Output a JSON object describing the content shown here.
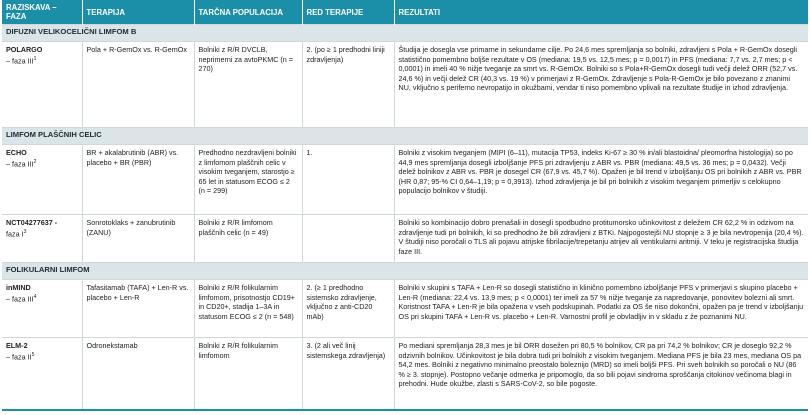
{
  "headers": [
    "RAZISKAVA – FAZA",
    "TERAPIJA",
    "TARČNA POPULACIJA",
    "RED TERAPIJE",
    "REZULTATI"
  ],
  "sections": [
    {
      "title": "DIFUZNI VELIKOCELIČNI LIMFOM B",
      "rows": [
        {
          "study": "POLARGO",
          "phase": "– faza III",
          "sup": "1",
          "therapy": "Pola + R-GemOx vs. R-GemOx",
          "population": "Bolniki z R/R DVCLB, neprimerni za avtoPKMC (n = 270)",
          "line": "2. (po ≥ 1 predhodni liniji zdravljenja)",
          "result": "Študija je dosegla vse primarne in sekundarne cilje. Po 24,6 mes spremljanja so bolniki, zdravljeni s Pola + R-GemOx dosegli statistično pomembno boljše rezultate v OS (mediana: 19,5 vs. 12,5 mes; p = 0,0017) in PFS (mediana: 7,7 vs. 2,7 mes; p < 0,0001) in imeli 40 % nižje tveganje za smrt vs. R-GemOx. Bolniki so s Pola+R-GemOx dosegli tudi večji delež ORR (52,7 vs. 24,6 %) in večji delež CR (40,3 vs. 19 %) v primerjavi z R-GemOx. Zdravljenje s Pola-R-GemOx je bilo povezano z znanimi NU, vključno s periferno nevropatijo in okužbami, vendar ti niso pomembno vplivali na rezultate študije in izhod zdravljenja."
        }
      ]
    },
    {
      "title": "LIMFOM PLAŠČNIH CELIC",
      "rows": [
        {
          "study": "ECHO",
          "phase": "– faza III",
          "sup": "2",
          "therapy": "BR + akalabrutinib (ABR) vs. placebo + BR (PBR)",
          "population": "Predhodno nezdravljeni bolniki z limfomom plaščnih celic v visokim tveganjem, starostjo ≥ 65 let in statusom ECOG ≤ 2 (n = 299)",
          "line": "1.",
          "result": "Bolniki z visokim tveganjem (MIPI (6–11), mutacija TP53, indeks Ki-67 ≥ 30 % in/ali blastoidna/ pleomorfna histologija) so po 44,9 mes spremljanja dosegli izboljšanje PFS pri zdravljenju z ABR vs. PBR (mediana: 49,5 vs. 36 mes; p = 0,0432). Večji delež bolnikov z ABR vs. PBR je dosegel CR (67,9 vs. 45,7 %). Opažen je bil trend v izboljšanju OS pri bolnikih z ABR vs. PBR (HR 0,87; 95-% CI 0,64–1,19; p = 0,3913). Izhod zdravljenja je bil pri bolnikih z visokim tveganjem primerljiv s celokupno populacijo bolnikov v študiji."
        },
        {
          "study": "NCT04277637 -",
          "phase": "faza I",
          "sup": "3",
          "therapy": "Sonrotoklaks + zanubrutinib (ZANU)",
          "population": "Bolniki z R/R limfomom plaščnih celic (n = 49)",
          "line": "",
          "result": "Bolniki so kombinacijo dobro prenašali in dosegli spodbudno protitumorsko učinkovitost z deležem CR 62,2 % in odzivom na zdravljenje tudi pri bolnikih, ki so predhodno že bili zdravljeni z BTKi. Najpogostejši NU stopnje ≥ 3 je bila nevtropenija (20,4 %). V študiji niso poročali o TLS ali pojavu atrijske fibrilacije/trepetanju atrijev ali ventikularni aritmiji. V teku je registracijska študija faze III."
        }
      ]
    },
    {
      "title": "FOLIKULARNI LIMFOM",
      "rows": [
        {
          "study": "inMIND",
          "phase": "– faza III",
          "sup": "4",
          "therapy": "Tafasitamab (TAFA) + Len-R vs. placebo + Len-R",
          "population": "Bolniki z R/R folikularnim limfomom, prisotnostjo CD19+ in CD20+, stadija 1–3A in statusom ECOG ≤ 2 (n = 548)",
          "line": "2. (≥ 1 predhodno sistemsko zdravljenje, vključno z anti-CD20 mAb)",
          "result": "Bolniki v skupini s TAFA + Len-R so dosegli statistično in klinično pomembno izboljšanje PFS v primerjavi s skupino placebo + Len-R (mediana: 22,4 vs. 13,9 mes; p < 0,0001) ter imeli za 57 % nižje tveganje za napredovanje, ponovitev bolezni ali smrt. Koristnost TAFA + Len-R je bila opažena v vseh podskupinah. Podatki za OS še niso dokončni, opažen pa je trend v izboljšanju OS pri skupini TAFA + Len-R vs. placebo + Len-R. Varnostni profil je obvladljiv in v skladu z že poznanimi NU."
        },
        {
          "study": "ELM-2",
          "phase": "– faza II",
          "sup": "5",
          "therapy": "Odronekstamab",
          "population": "Bolniki z R/R folikularnim limfomom",
          "line": "3. (2 ali več linij sistemskega zdravljenja)",
          "result": "Po mediani spremljanja 28,3 mes je bil ORR dosežen pri 80,5 % bolnikov, CR pa pri 74,2 % bolnikov; CR je doseglo 92,2 % odzivnih bolnikov. Učinkovitost je bila dobra tudi pri bolnikih z visokim tveganjem. Mediana PFS je bila 23 mes, mediana OS pa 54,2 mes. Bolniki z negativno minimalno preostalo boleznijo (MRD) so imeli boljši PFS. Pri sveh bolnikih so poročali o NU (86 % ≥ 3. stopnje). Postopno večanje odmerka je pripomoglo, da so bili pojavi sindroma sproščanja citokinov večinoma blagi in prehodni. Hude okužbe, zlasti s SARS-CoV-2, so bile pogoste."
        }
      ]
    }
  ]
}
